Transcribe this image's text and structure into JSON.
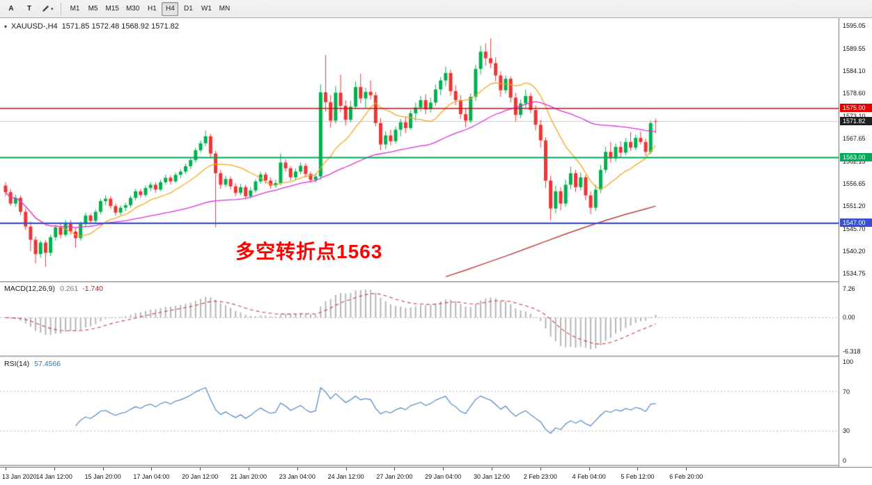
{
  "toolbar": {
    "tools": [
      {
        "name": "cursor-tool",
        "label": "A"
      },
      {
        "name": "text-tool",
        "label": "T"
      },
      {
        "name": "draw-tool",
        "icon": "pencil"
      }
    ],
    "timeframes": [
      "M1",
      "M5",
      "M15",
      "M30",
      "H1",
      "H4",
      "D1",
      "W1",
      "MN"
    ],
    "active_timeframe": "H4"
  },
  "chart": {
    "title": "XAUUSD-,H4",
    "ohlc_readout": "1571.85 1572.48 1568.92 1571.82",
    "annotation": {
      "text": "多空转折点1563",
      "color": "#ff0000"
    },
    "price_tags": [
      {
        "value": "1575.00",
        "color": "#e60000"
      },
      {
        "value": "1571.82",
        "color": "#1f1f1f"
      },
      {
        "value": "1563.00",
        "color": "#00a85a"
      },
      {
        "value": "1547.00",
        "color": "#3a4fd0"
      }
    ]
  },
  "macd_panel": {
    "label": "MACD(12,26,9)",
    "value_main": "0.261",
    "value_signal": "-1.740",
    "axis_labels": [
      "7.26",
      "0.00",
      "-6.318"
    ]
  },
  "rsi_panel": {
    "label": "RSI(14)",
    "value": "57.4566",
    "axis_labels": [
      "100",
      "70",
      "30",
      "0"
    ]
  },
  "time_axis": {
    "labels": [
      "13 Jan 2020",
      "14 Jan 12:00",
      "15 Jan 20:00",
      "17 Jan 04:00",
      "20 Jan 12:00",
      "21 Jan 20:00",
      "23 Jan 04:00",
      "24 Jan 12:00",
      "27 Jan 20:00",
      "29 Jan 04:00",
      "30 Jan 12:00",
      "2 Feb 23:00",
      "4 Feb 04:00",
      "5 Feb 12:00",
      "6 Feb 20:00"
    ]
  },
  "chart_data": {
    "type": "candlestick",
    "symbol": "XAUUSD-",
    "timeframe": "H4",
    "colors": {
      "up": "#00b14f",
      "down": "#ef3434"
    },
    "price_axis": {
      "min": 1533.6,
      "max": 1596.3,
      "tick_labels": [
        "1595.05",
        "1589.55",
        "1584.10",
        "1578.60",
        "1573.10",
        "1567.65",
        "1562.15",
        "1556.65",
        "1551.20",
        "1545.70",
        "1540.20",
        "1534.75"
      ]
    },
    "current_price": 1571.82,
    "hlines": [
      {
        "price": 1575.0,
        "color": "#e60000",
        "width": 1.6
      },
      {
        "price": 1563.0,
        "color": "#00a85a",
        "width": 1.8
      },
      {
        "price": 1547.0,
        "color": "#3a4fd0",
        "width": 2.2
      }
    ],
    "ma": {
      "fast": {
        "type": "sma",
        "period": 12,
        "color": "#f2a71b"
      },
      "slow": {
        "type": "sma",
        "period": 44,
        "color": "#d92ed9"
      },
      "long_color": "#bc4040",
      "long_points": [
        [
          88,
          1534.0
        ],
        [
          92,
          1535.6
        ],
        [
          96,
          1537.3
        ],
        [
          100,
          1539.0
        ],
        [
          104,
          1540.8
        ],
        [
          108,
          1542.6
        ],
        [
          112,
          1544.4
        ],
        [
          116,
          1546.1
        ],
        [
          120,
          1547.7
        ],
        [
          124,
          1549.2
        ],
        [
          128,
          1550.5
        ],
        [
          130,
          1551.2
        ]
      ]
    },
    "macd": {
      "fast": 12,
      "slow": 26,
      "signal": 9,
      "hist_color": "#b5b5b5",
      "signal_color": "#cf3a3a"
    },
    "rsi": {
      "period": 14,
      "color": "#3f7cc0",
      "levels": [
        70,
        30
      ]
    },
    "candles": [
      [
        1556.2,
        1557.0,
        1553.6,
        1554.6
      ],
      [
        1554.6,
        1555.4,
        1551.2,
        1551.8
      ],
      [
        1551.8,
        1554.0,
        1551.0,
        1553.2
      ],
      [
        1553.2,
        1553.8,
        1549.0,
        1549.8
      ],
      [
        1549.8,
        1550.6,
        1545.4,
        1546.2
      ],
      [
        1546.2,
        1547.4,
        1540.2,
        1543.0
      ],
      [
        1543.0,
        1543.8,
        1537.2,
        1539.5
      ],
      [
        1539.5,
        1542.8,
        1538.6,
        1542.3
      ],
      [
        1542.3,
        1542.9,
        1536.4,
        1539.8
      ],
      [
        1539.8,
        1544.2,
        1539.0,
        1543.6
      ],
      [
        1543.6,
        1546.6,
        1542.8,
        1546.0
      ],
      [
        1546.0,
        1546.8,
        1543.4,
        1544.2
      ],
      [
        1544.2,
        1547.8,
        1543.8,
        1547.1
      ],
      [
        1547.1,
        1547.8,
        1544.2,
        1545.0
      ],
      [
        1545.0,
        1545.8,
        1541.0,
        1543.4
      ],
      [
        1543.4,
        1547.4,
        1542.8,
        1546.8
      ],
      [
        1546.8,
        1549.6,
        1546.0,
        1548.9
      ],
      [
        1548.9,
        1549.4,
        1546.8,
        1547.6
      ],
      [
        1547.6,
        1550.4,
        1547.0,
        1549.8
      ],
      [
        1549.8,
        1553.0,
        1549.2,
        1552.4
      ],
      [
        1552.4,
        1553.8,
        1551.4,
        1553.0
      ],
      [
        1553.0,
        1553.6,
        1550.6,
        1551.2
      ],
      [
        1551.2,
        1551.8,
        1548.8,
        1549.6
      ],
      [
        1549.6,
        1551.4,
        1549.0,
        1550.8
      ],
      [
        1550.8,
        1552.0,
        1550.0,
        1551.4
      ],
      [
        1551.4,
        1553.8,
        1550.8,
        1553.2
      ],
      [
        1553.2,
        1555.4,
        1552.6,
        1554.8
      ],
      [
        1554.8,
        1555.4,
        1553.2,
        1553.9
      ],
      [
        1553.9,
        1556.2,
        1553.4,
        1555.6
      ],
      [
        1555.6,
        1557.0,
        1554.8,
        1556.4
      ],
      [
        1556.4,
        1557.0,
        1554.4,
        1555.2
      ],
      [
        1555.2,
        1557.6,
        1554.8,
        1557.0
      ],
      [
        1557.0,
        1558.8,
        1556.4,
        1558.1
      ],
      [
        1558.1,
        1558.7,
        1556.4,
        1557.2
      ],
      [
        1557.2,
        1559.4,
        1556.8,
        1558.8
      ],
      [
        1558.8,
        1560.2,
        1558.0,
        1559.6
      ],
      [
        1559.6,
        1561.6,
        1559.0,
        1560.9
      ],
      [
        1560.9,
        1563.0,
        1560.2,
        1562.4
      ],
      [
        1562.4,
        1565.4,
        1561.8,
        1564.8
      ],
      [
        1564.8,
        1567.2,
        1564.2,
        1566.5
      ],
      [
        1566.5,
        1569.6,
        1565.8,
        1568.2
      ],
      [
        1568.2,
        1568.8,
        1562.8,
        1564.0
      ],
      [
        1564.0,
        1564.6,
        1546.0,
        1559.2
      ],
      [
        1559.2,
        1560.0,
        1555.4,
        1556.4
      ],
      [
        1556.4,
        1558.6,
        1555.8,
        1557.8
      ],
      [
        1557.8,
        1558.4,
        1555.2,
        1556.0
      ],
      [
        1556.0,
        1556.8,
        1553.6,
        1554.4
      ],
      [
        1554.4,
        1556.6,
        1553.8,
        1555.8
      ],
      [
        1555.8,
        1556.4,
        1552.8,
        1553.6
      ],
      [
        1553.6,
        1555.8,
        1553.0,
        1555.0
      ],
      [
        1555.0,
        1557.8,
        1554.4,
        1557.2
      ],
      [
        1557.2,
        1559.6,
        1556.6,
        1558.9
      ],
      [
        1558.9,
        1559.5,
        1556.6,
        1557.4
      ],
      [
        1557.4,
        1558.2,
        1555.4,
        1556.2
      ],
      [
        1556.2,
        1557.6,
        1555.6,
        1556.8
      ],
      [
        1556.8,
        1564.0,
        1556.2,
        1561.8
      ],
      [
        1561.8,
        1562.6,
        1559.6,
        1560.4
      ],
      [
        1560.4,
        1561.0,
        1557.4,
        1558.2
      ],
      [
        1558.2,
        1560.4,
        1557.6,
        1559.6
      ],
      [
        1559.6,
        1561.8,
        1559.0,
        1561.0
      ],
      [
        1561.0,
        1561.6,
        1558.2,
        1559.0
      ],
      [
        1559.0,
        1559.6,
        1556.8,
        1557.6
      ],
      [
        1557.6,
        1559.2,
        1557.0,
        1558.4
      ],
      [
        1558.4,
        1580.8,
        1557.6,
        1578.9
      ],
      [
        1578.9,
        1588.0,
        1574.2,
        1576.5
      ],
      [
        1576.5,
        1578.2,
        1570.3,
        1572.0
      ],
      [
        1572.0,
        1580.4,
        1571.2,
        1578.8
      ],
      [
        1578.8,
        1583.2,
        1574.0,
        1575.6
      ],
      [
        1575.6,
        1577.0,
        1570.8,
        1572.2
      ],
      [
        1572.2,
        1576.8,
        1571.6,
        1575.4
      ],
      [
        1575.4,
        1581.6,
        1574.8,
        1580.2
      ],
      [
        1580.2,
        1583.4,
        1576.2,
        1577.4
      ],
      [
        1577.4,
        1580.0,
        1575.0,
        1579.0
      ],
      [
        1579.0,
        1581.8,
        1577.2,
        1578.2
      ],
      [
        1578.2,
        1579.0,
        1570.6,
        1571.4
      ],
      [
        1571.4,
        1572.6,
        1564.8,
        1566.2
      ],
      [
        1566.2,
        1569.4,
        1565.0,
        1568.4
      ],
      [
        1568.4,
        1569.8,
        1566.0,
        1567.0
      ],
      [
        1567.0,
        1570.6,
        1566.4,
        1569.8
      ],
      [
        1569.8,
        1572.4,
        1568.2,
        1571.6
      ],
      [
        1571.6,
        1573.0,
        1569.0,
        1570.2
      ],
      [
        1570.2,
        1574.6,
        1569.8,
        1573.8
      ],
      [
        1573.8,
        1576.4,
        1572.0,
        1575.2
      ],
      [
        1575.2,
        1578.0,
        1574.2,
        1577.0
      ],
      [
        1577.0,
        1578.4,
        1573.6,
        1574.8
      ],
      [
        1574.8,
        1577.6,
        1574.0,
        1576.4
      ],
      [
        1576.4,
        1580.8,
        1575.6,
        1579.6
      ],
      [
        1579.6,
        1582.6,
        1578.2,
        1581.8
      ],
      [
        1581.8,
        1585.2,
        1580.4,
        1583.6
      ],
      [
        1583.6,
        1584.4,
        1578.0,
        1579.2
      ],
      [
        1579.2,
        1580.6,
        1575.8,
        1577.0
      ],
      [
        1577.0,
        1578.2,
        1572.4,
        1573.6
      ],
      [
        1573.6,
        1575.0,
        1570.4,
        1572.0
      ],
      [
        1572.0,
        1578.6,
        1571.4,
        1577.8
      ],
      [
        1577.8,
        1585.6,
        1576.8,
        1584.6
      ],
      [
        1584.6,
        1590.2,
        1583.2,
        1588.8
      ],
      [
        1588.8,
        1590.8,
        1585.4,
        1587.2
      ],
      [
        1587.2,
        1592.0,
        1584.8,
        1586.0
      ],
      [
        1586.0,
        1587.4,
        1581.6,
        1583.0
      ],
      [
        1583.0,
        1584.0,
        1577.8,
        1579.4
      ],
      [
        1579.4,
        1583.0,
        1578.6,
        1582.2
      ],
      [
        1582.2,
        1582.8,
        1576.4,
        1577.6
      ],
      [
        1577.6,
        1578.8,
        1571.8,
        1573.4
      ],
      [
        1573.4,
        1577.2,
        1572.6,
        1576.2
      ],
      [
        1576.2,
        1579.6,
        1575.0,
        1578.0
      ],
      [
        1578.0,
        1578.8,
        1573.8,
        1574.6
      ],
      [
        1574.6,
        1575.8,
        1569.6,
        1571.0
      ],
      [
        1571.0,
        1572.2,
        1565.4,
        1567.2
      ],
      [
        1567.2,
        1568.0,
        1555.6,
        1557.4
      ],
      [
        1557.4,
        1558.6,
        1547.8,
        1550.6
      ],
      [
        1550.6,
        1556.2,
        1549.4,
        1554.8
      ],
      [
        1554.8,
        1555.8,
        1550.2,
        1551.8
      ],
      [
        1551.8,
        1557.6,
        1551.0,
        1556.4
      ],
      [
        1556.4,
        1560.8,
        1555.2,
        1559.2
      ],
      [
        1559.2,
        1560.0,
        1554.6,
        1555.8
      ],
      [
        1555.8,
        1559.4,
        1555.0,
        1558.2
      ],
      [
        1558.2,
        1558.8,
        1552.6,
        1553.8
      ],
      [
        1553.8,
        1554.8,
        1549.2,
        1550.8
      ],
      [
        1550.8,
        1556.4,
        1550.0,
        1555.2
      ],
      [
        1555.2,
        1561.2,
        1554.4,
        1560.0
      ],
      [
        1560.0,
        1565.6,
        1559.2,
        1564.4
      ],
      [
        1564.4,
        1566.8,
        1561.8,
        1562.8
      ],
      [
        1562.8,
        1566.4,
        1562.0,
        1565.6
      ],
      [
        1565.6,
        1567.0,
        1563.2,
        1564.2
      ],
      [
        1564.2,
        1567.8,
        1563.6,
        1566.8
      ],
      [
        1566.8,
        1569.2,
        1564.6,
        1565.4
      ],
      [
        1565.4,
        1568.6,
        1564.8,
        1567.8
      ],
      [
        1567.8,
        1569.4,
        1566.2,
        1566.8
      ],
      [
        1566.8,
        1567.6,
        1563.4,
        1564.4
      ],
      [
        1564.4,
        1572.0,
        1563.8,
        1571.4
      ],
      [
        1571.85,
        1572.48,
        1568.92,
        1571.82
      ]
    ]
  }
}
